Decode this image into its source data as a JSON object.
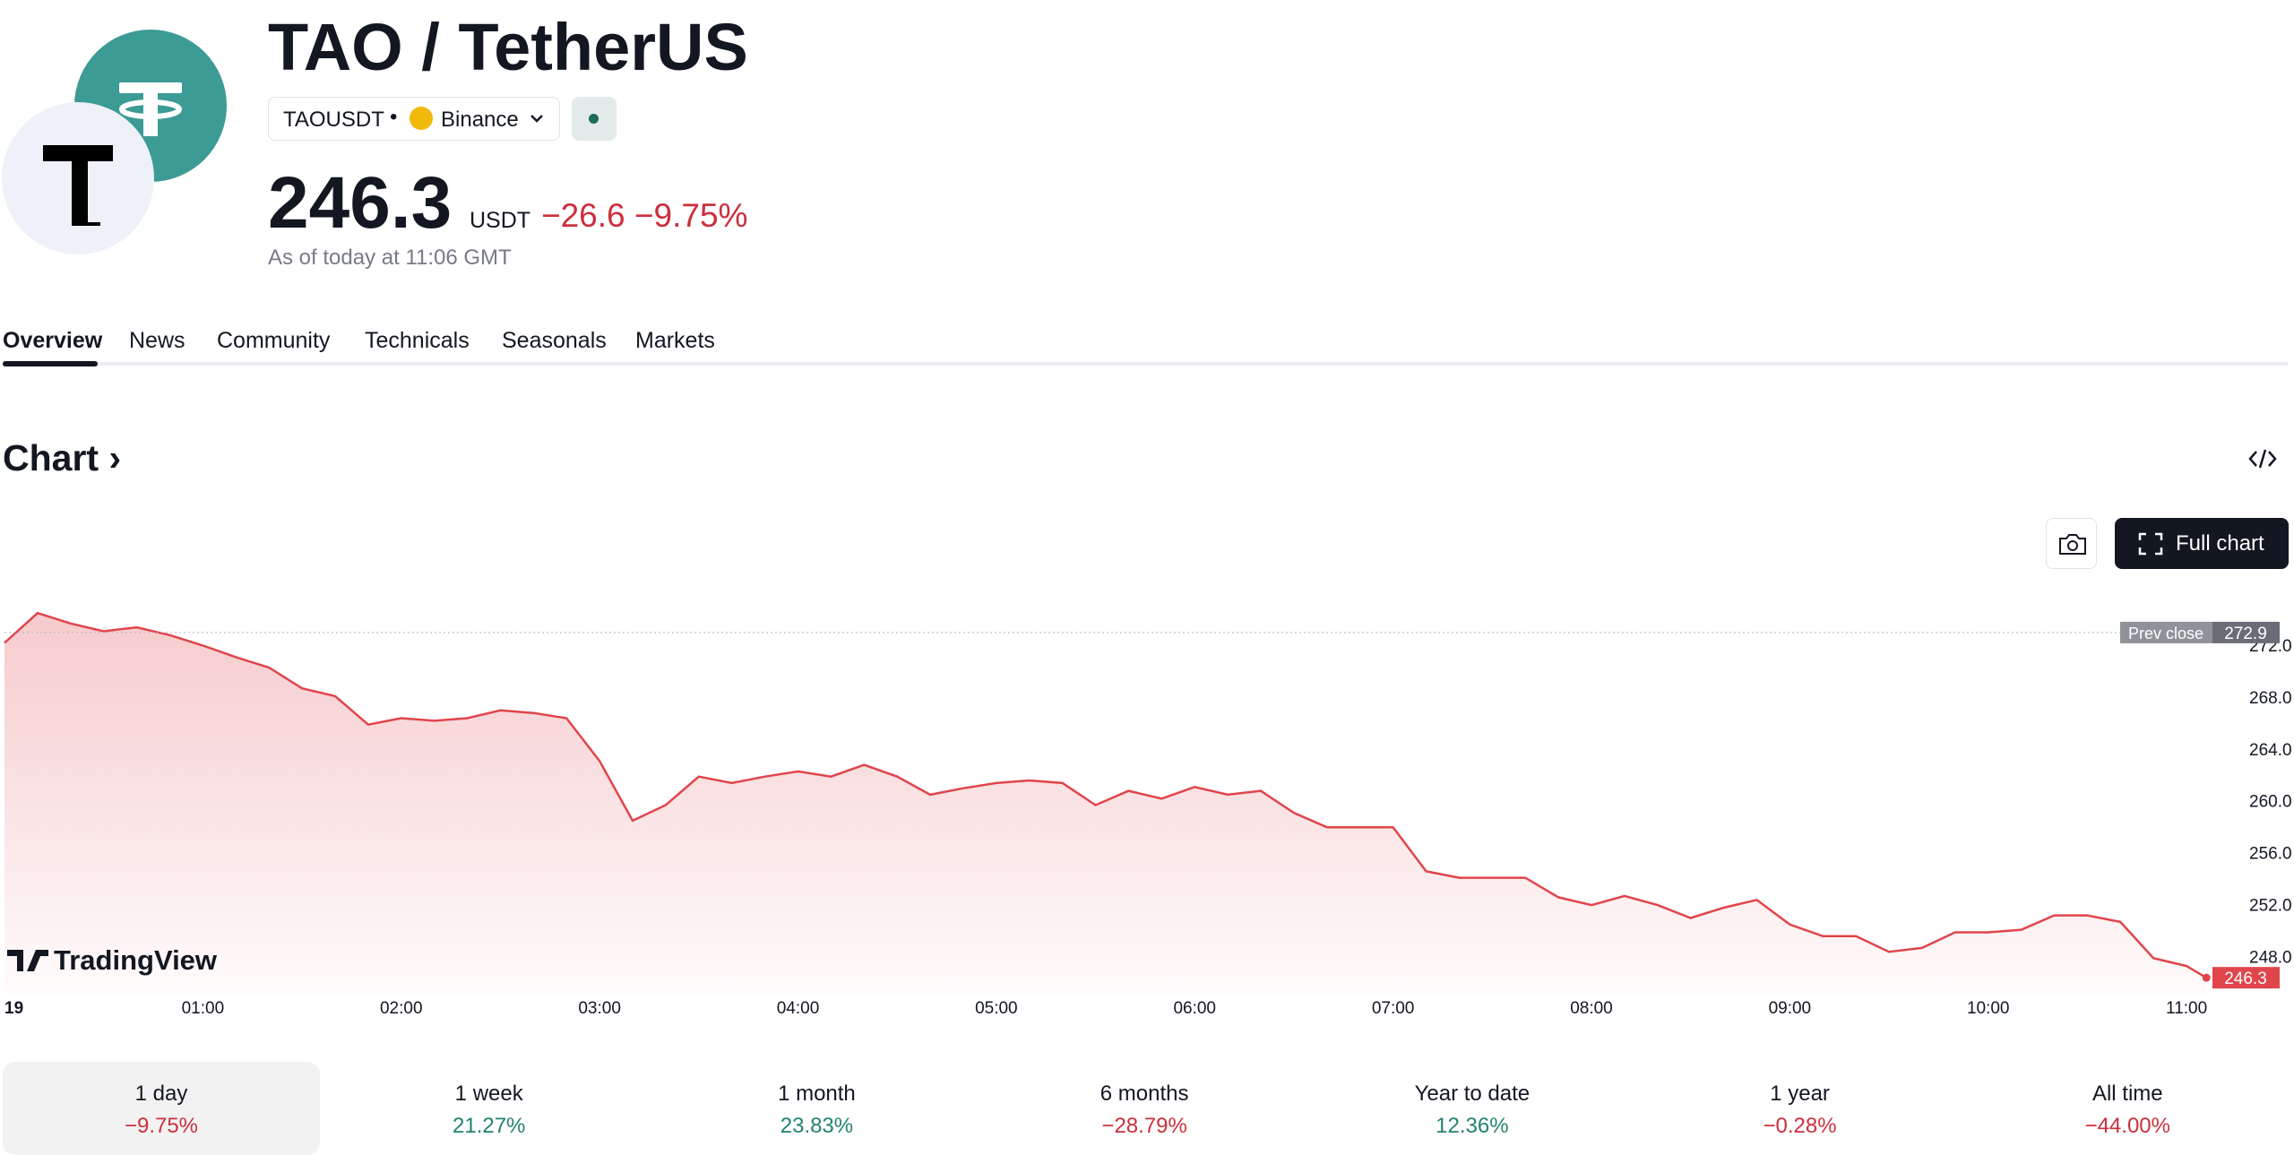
{
  "header": {
    "title": "TAO / TetherUS",
    "symbol": "TAOUSDT",
    "exchange": "Binance",
    "price": "246.3",
    "currency": "USDT",
    "change": "−26.6",
    "change_pct": "−9.75%",
    "as_of": "As of today at 11:06 GMT"
  },
  "tabs": [
    "Overview",
    "News",
    "Community",
    "Technicals",
    "Seasonals",
    "Markets"
  ],
  "chart_section": {
    "title": "Chart",
    "full_chart": "Full chart"
  },
  "chart_data": {
    "type": "line",
    "color": "#e0454b",
    "watermark": "TradingView",
    "x": [
      0,
      10,
      20,
      30,
      40,
      50,
      60,
      70,
      80,
      90,
      100,
      110,
      120,
      130,
      140,
      150,
      160,
      170,
      180,
      190,
      200,
      210,
      220,
      230,
      240,
      250,
      260,
      270,
      280,
      290,
      300,
      310,
      320,
      330,
      340,
      350,
      360,
      370,
      380,
      390,
      400,
      410,
      420,
      430,
      440,
      450,
      460,
      470,
      480,
      490,
      500,
      510,
      520,
      530,
      540,
      550,
      560,
      570,
      580,
      590,
      600,
      610,
      620,
      630,
      640,
      650,
      660,
      666
    ],
    "values": [
      272.1,
      274.4,
      273.6,
      273.0,
      273.3,
      272.7,
      271.9,
      271.0,
      270.2,
      268.6,
      268.0,
      265.8,
      266.3,
      266.1,
      266.3,
      266.9,
      266.7,
      266.3,
      263.0,
      258.4,
      259.6,
      261.8,
      261.3,
      261.8,
      262.2,
      261.8,
      262.7,
      261.8,
      260.4,
      260.9,
      261.3,
      261.5,
      261.3,
      259.6,
      260.7,
      260.1,
      261.0,
      260.4,
      260.7,
      259.0,
      257.9,
      257.9,
      257.9,
      254.5,
      254.0,
      254.0,
      254.0,
      252.5,
      251.9,
      252.6,
      251.9,
      250.9,
      251.7,
      252.3,
      250.4,
      249.5,
      249.5,
      248.3,
      248.6,
      249.8,
      249.8,
      250.0,
      251.1,
      251.1,
      250.6,
      247.8,
      247.2,
      246.3
    ],
    "xlim": [
      0,
      670
    ],
    "xticks": [
      {
        "value": 0,
        "label": "19"
      },
      {
        "value": 60,
        "label": "01:00"
      },
      {
        "value": 120,
        "label": "02:00"
      },
      {
        "value": 180,
        "label": "03:00"
      },
      {
        "value": 240,
        "label": "04:00"
      },
      {
        "value": 300,
        "label": "05:00"
      },
      {
        "value": 360,
        "label": "06:00"
      },
      {
        "value": 420,
        "label": "07:00"
      },
      {
        "value": 480,
        "label": "08:00"
      },
      {
        "value": 540,
        "label": "09:00"
      },
      {
        "value": 600,
        "label": "10:00"
      },
      {
        "value": 660,
        "label": "11:00"
      }
    ],
    "ylim": [
      245,
      276
    ],
    "yticks": [
      {
        "value": 248,
        "label": "248.0"
      },
      {
        "value": 252,
        "label": "252.0"
      },
      {
        "value": 256,
        "label": "256.0"
      },
      {
        "value": 260,
        "label": "260.0"
      },
      {
        "value": 264,
        "label": "264.0"
      },
      {
        "value": 268,
        "label": "268.0"
      },
      {
        "value": 272,
        "label": "272.0"
      }
    ],
    "prev_close": {
      "label": "Prev close",
      "value": 272.9
    }
  },
  "periods": [
    {
      "label": "1 day",
      "change": "−9.75%"
    },
    {
      "label": "1 week",
      "change": "21.27%"
    },
    {
      "label": "1 month",
      "change": "23.83%"
    },
    {
      "label": "6 months",
      "change": "−28.79%"
    },
    {
      "label": "Year to date",
      "change": "12.36%"
    },
    {
      "label": "1 year",
      "change": "−0.28%"
    },
    {
      "label": "All time",
      "change": "−44.00%"
    }
  ]
}
